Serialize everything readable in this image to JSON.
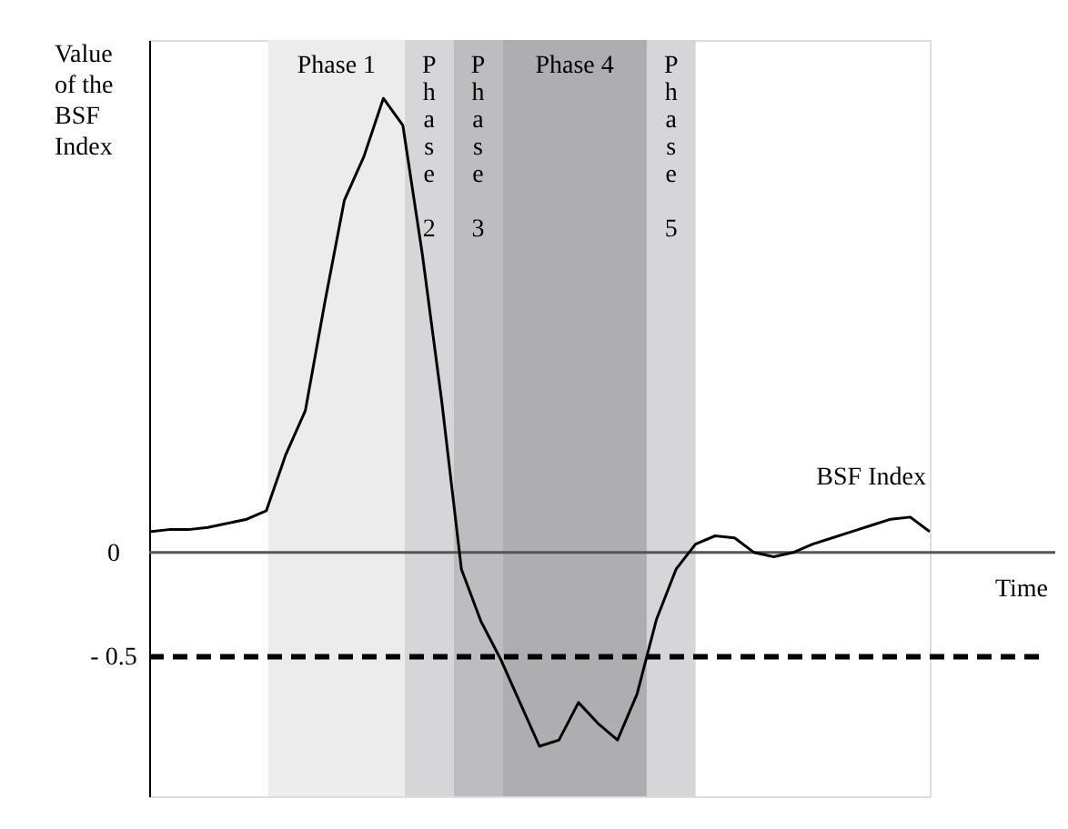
{
  "chart_data": {
    "type": "line",
    "xlabel": "Time",
    "ylabel": "Value of the BSF Index",
    "categories": [
      null,
      null,
      null,
      null,
      null,
      null,
      null,
      null,
      null,
      null,
      null,
      null,
      null,
      null,
      null,
      null,
      null,
      null,
      null,
      null,
      null,
      null,
      null,
      null,
      null,
      null,
      null,
      null,
      null,
      null,
      null,
      null,
      null,
      null,
      null,
      null,
      null,
      null,
      null,
      null,
      null
    ],
    "series": [
      {
        "color": "#000000",
        "values": [
          0.1,
          0.11,
          0.11,
          0.12,
          0.14,
          0.16,
          0.2,
          0.47,
          0.68,
          1.2,
          1.69,
          1.9,
          2.18,
          2.05,
          1.43,
          0.72,
          -0.08,
          -0.33,
          -0.51,
          -0.72,
          -0.93,
          -0.9,
          -0.72,
          -0.82,
          -0.9,
          -0.68,
          -0.32,
          -0.08,
          0.04,
          0.08,
          0.07,
          0.0,
          -0.02,
          0.0,
          0.04,
          0.07,
          0.1,
          0.13,
          0.16,
          0.17,
          0.1
        ]
      }
    ],
    "ylim": [
      -1.17,
      2.46
    ],
    "yticks": [
      {
        "value": 0,
        "label": "0"
      },
      {
        "value": -0.5,
        "label": "- 0.5"
      }
    ],
    "tick_labels": "y",
    "grid": false,
    "marker": "none",
    "line_style": "solid",
    "ref_lines": [
      {
        "axis": "y",
        "value": -0.5,
        "color": "#000000",
        "line_style": "dashed"
      }
    ],
    "annotations": [
      "Phase 1",
      "Phase 2",
      "Phase 3",
      "Phase 4",
      "Phase 5",
      "BSF Index"
    ]
  }
}
